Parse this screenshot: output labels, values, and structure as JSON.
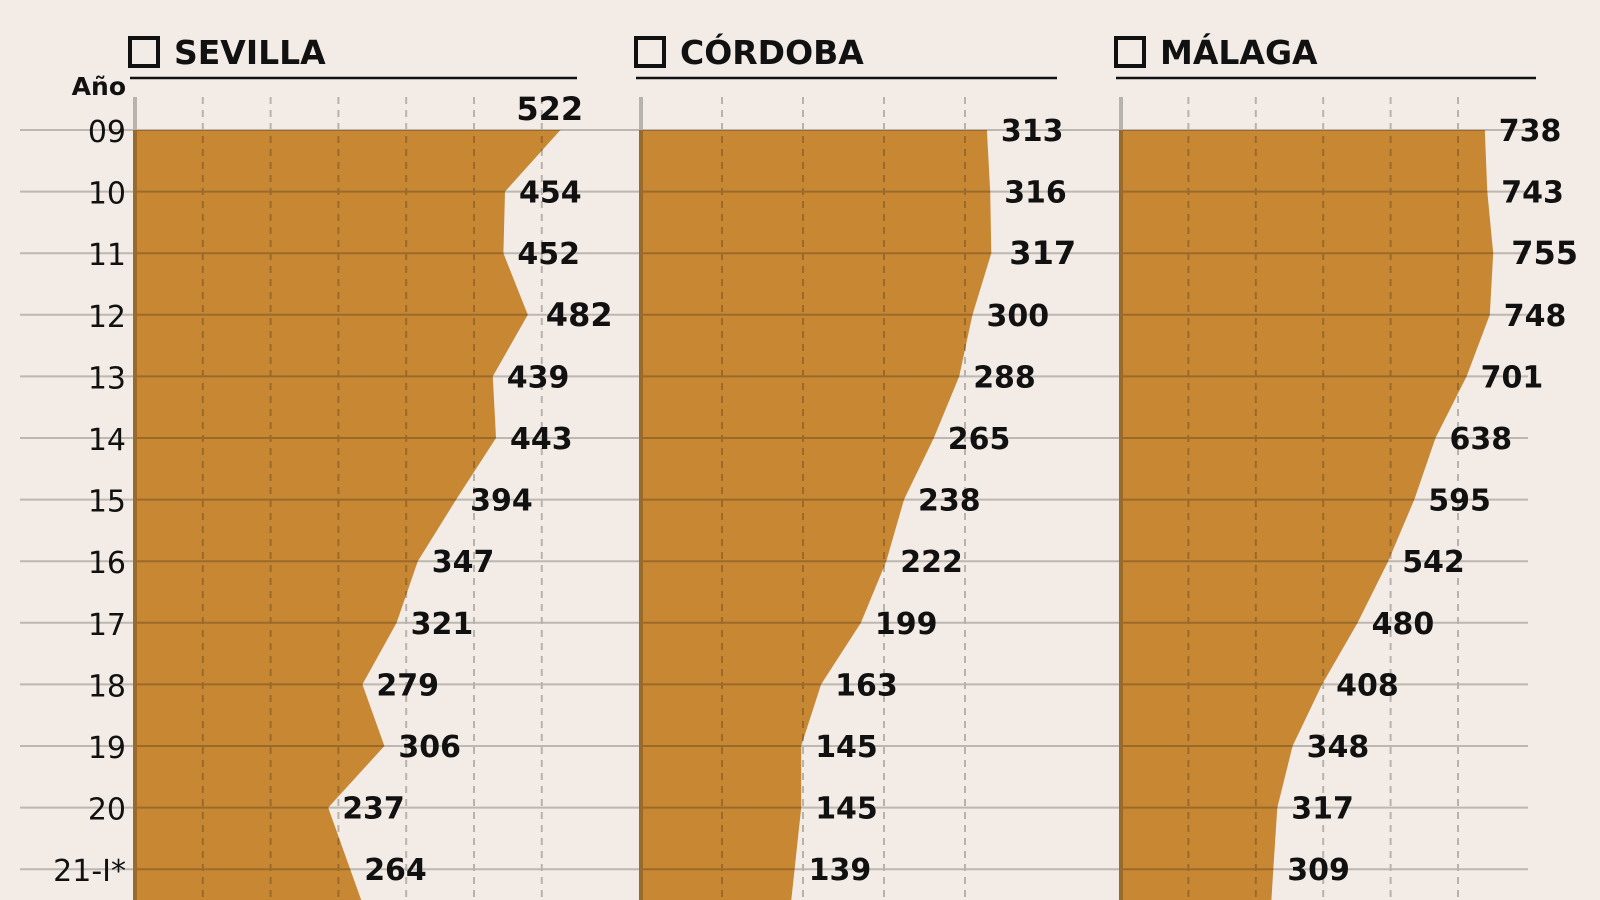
{
  "axis_header": "Año",
  "years": [
    "09",
    "10",
    "11",
    "12",
    "13",
    "14",
    "15",
    "16",
    "17",
    "18",
    "19",
    "20",
    "21-I*"
  ],
  "colors": {
    "background": "#f3ece6",
    "area_fill": "#c88833",
    "gridline": "#bdb7b1",
    "axis": "#b8b2ac",
    "text": "#111111"
  },
  "panels": [
    {
      "title": "SEVILLA",
      "values": [
        522,
        454,
        452,
        482,
        439,
        443,
        394,
        347,
        321,
        279,
        306,
        237,
        264
      ],
      "highlight": [
        0,
        3
      ]
    },
    {
      "title": "CÓRDOBA",
      "values": [
        313,
        316,
        317,
        300,
        288,
        265,
        238,
        222,
        199,
        163,
        145,
        145,
        139
      ],
      "highlight": [
        2
      ]
    },
    {
      "title": "MÁLAGA",
      "values": [
        738,
        743,
        755,
        748,
        701,
        638,
        595,
        542,
        480,
        408,
        348,
        317,
        309
      ],
      "highlight": [
        2
      ]
    }
  ],
  "chart_data": {
    "type": "area",
    "orientation": "horizontal",
    "title": "",
    "xlabel": "",
    "ylabel": "Año",
    "categories": [
      "09",
      "10",
      "11",
      "12",
      "13",
      "14",
      "15",
      "16",
      "17",
      "18",
      "19",
      "20",
      "21-I*"
    ],
    "series": [
      {
        "name": "SEVILLA",
        "values": [
          522,
          454,
          452,
          482,
          439,
          443,
          394,
          347,
          321,
          279,
          306,
          237,
          264
        ]
      },
      {
        "name": "CÓRDOBA",
        "values": [
          313,
          316,
          317,
          300,
          288,
          265,
          238,
          222,
          199,
          163,
          145,
          145,
          139
        ]
      },
      {
        "name": "MÁLAGA",
        "values": [
          738,
          743,
          755,
          748,
          701,
          638,
          595,
          542,
          480,
          408,
          348,
          317,
          309
        ]
      }
    ],
    "highlighted_maxima": {
      "SEVILLA": "09",
      "CÓRDOBA": "11",
      "MÁLAGA": "11"
    },
    "grid": true,
    "legend_position": "none (panel titles)",
    "layout": "small multiples, 3 panels side by side"
  }
}
